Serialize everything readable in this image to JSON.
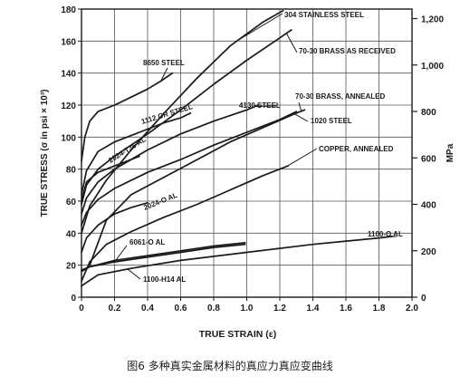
{
  "caption": "图6 多种真实金属材料的真应力真应变曲线",
  "colors": {
    "ink": "#1a1a1a",
    "background": "#ffffff"
  },
  "chart_data": {
    "type": "line",
    "xlabel": "TRUE STRAIN (ε)",
    "ylabel": "TRUE STRESS (σ in psi × 10³)",
    "y2label": "MPa",
    "xlim": [
      0,
      2.0
    ],
    "ylim": [
      0,
      180
    ],
    "y2lim": [
      0,
      1241
    ],
    "grid": true,
    "x_ticks": [
      "0",
      "0.2",
      "0.4",
      "0.6",
      "0.8",
      "1.0",
      "1.2",
      "1.4",
      "1.6",
      "1.8",
      "2.0"
    ],
    "y_ticks": [
      "0",
      "20",
      "40",
      "60",
      "80",
      "100",
      "120",
      "140",
      "160",
      "180"
    ],
    "y2_ticks": [
      {
        "value": 0,
        "label": "0"
      },
      {
        "value": 200,
        "label": "200"
      },
      {
        "value": 400,
        "label": "400"
      },
      {
        "value": 600,
        "label": "600"
      },
      {
        "value": 800,
        "label": "800"
      },
      {
        "value": 1000,
        "label": "1,000"
      },
      {
        "value": 1200,
        "label": "1,200"
      }
    ],
    "series": [
      {
        "name": "304 STAINLESS STEEL",
        "x": [
          0,
          0.05,
          0.15,
          0.3,
          0.5,
          0.7,
          0.9,
          1.1,
          1.22
        ],
        "y": [
          40,
          57,
          73,
          92,
          115,
          137,
          157,
          172,
          179
        ]
      },
      {
        "name": "8650 STEEL",
        "x": [
          0,
          0.02,
          0.05,
          0.1,
          0.2,
          0.3,
          0.4,
          0.48,
          0.55
        ],
        "y": [
          85,
          100,
          110,
          116,
          120,
          125,
          130,
          135,
          140
        ]
      },
      {
        "name": "70-30 BRASS AS RECEIVED",
        "x": [
          0,
          0.03,
          0.1,
          0.2,
          0.4,
          0.6,
          0.8,
          1.0,
          1.2,
          1.27
        ],
        "y": [
          58,
          70,
          80,
          88,
          102,
          117,
          133,
          148,
          162,
          167
        ]
      },
      {
        "name": "1112 CR STEEL",
        "x": [
          0,
          0.03,
          0.1,
          0.2,
          0.3,
          0.4,
          0.5,
          0.6,
          0.66
        ],
        "y": [
          64,
          79,
          91,
          97,
          101,
          105,
          109,
          112,
          115
        ]
      },
      {
        "name": "4130 STEEL",
        "x": [
          0,
          0.03,
          0.1,
          0.2,
          0.4,
          0.6,
          0.8,
          1.0,
          1.07
        ],
        "y": [
          52,
          62,
          72,
          80,
          92,
          102,
          110,
          117,
          120
        ]
      },
      {
        "name": "2024-T36 AL",
        "x": [
          0,
          0.03,
          0.1,
          0.2,
          0.3,
          0.35
        ],
        "y": [
          60,
          72,
          78,
          82,
          86,
          88
        ]
      },
      {
        "name": "70-30 BRASS, ANNEALED",
        "x": [
          0.05,
          0.15,
          0.3,
          0.5,
          0.7,
          0.9,
          1.1,
          1.3,
          1.35
        ],
        "y": [
          20,
          48,
          64,
          75,
          86,
          97,
          106,
          115,
          117
        ]
      },
      {
        "name": "1020 STEEL",
        "x": [
          0,
          0.03,
          0.1,
          0.2,
          0.4,
          0.6,
          0.8,
          1.0,
          1.2,
          1.3
        ],
        "y": [
          45,
          53,
          61,
          68,
          78,
          86,
          95,
          103,
          111,
          116
        ]
      },
      {
        "name": "COPPER, ANNEALED",
        "x": [
          0,
          0.05,
          0.15,
          0.3,
          0.5,
          0.7,
          0.9,
          1.1,
          1.25
        ],
        "y": [
          10,
          22,
          33,
          41,
          50,
          58,
          67,
          76,
          82
        ]
      },
      {
        "name": "2024-O AL",
        "x": [
          0,
          0.03,
          0.1,
          0.2,
          0.3,
          0.4
        ],
        "y": [
          28,
          37,
          45,
          52,
          56,
          59
        ]
      },
      {
        "name": "1100-O AL",
        "x": [
          0,
          0.1,
          0.3,
          0.6,
          1.0,
          1.4,
          1.8,
          1.88
        ],
        "y": [
          7,
          14,
          18,
          23,
          28,
          33,
          37,
          38
        ]
      },
      {
        "name": "6061-O AL",
        "x": [
          0,
          0.05,
          0.2,
          0.4,
          0.6,
          0.8,
          0.99
        ],
        "y": [
          16,
          19,
          23,
          26,
          29,
          32,
          34
        ]
      },
      {
        "name": "1100-H14 AL",
        "x": [
          0,
          0.05,
          0.2,
          0.4,
          0.6,
          0.8,
          0.99
        ],
        "y": [
          17,
          19,
          22,
          25,
          28,
          31,
          33
        ]
      }
    ],
    "annotations": [
      {
        "text": "304 STAINLESS STEEL",
        "series": "304 STAINLESS STEEL"
      },
      {
        "text": "8650 STEEL",
        "series": "8650 STEEL"
      },
      {
        "text": "70-30 BRASS AS RECEIVED",
        "series": "70-30 BRASS AS RECEIVED"
      },
      {
        "text": "1112 CR STEEL",
        "series": "1112 CR STEEL"
      },
      {
        "text": "4130 STEEL",
        "series": "4130 STEEL"
      },
      {
        "text": "70-30 BRASS, ANNEALED",
        "series": "70-30 BRASS, ANNEALED"
      },
      {
        "text": "1020 STEEL",
        "series": "1020 STEEL"
      },
      {
        "text": "2024-T36 AL",
        "series": "2024-T36 AL"
      },
      {
        "text": "COPPER, ANNEALED",
        "series": "COPPER, ANNEALED"
      },
      {
        "text": "2024-O AL",
        "series": "2024-O AL"
      },
      {
        "text": "1100-O AL",
        "series": "1100-O AL"
      },
      {
        "text": "6061-O AL",
        "series": "6061-O AL"
      },
      {
        "text": "1100-H14 AL",
        "series": "1100-H14 AL"
      }
    ]
  }
}
